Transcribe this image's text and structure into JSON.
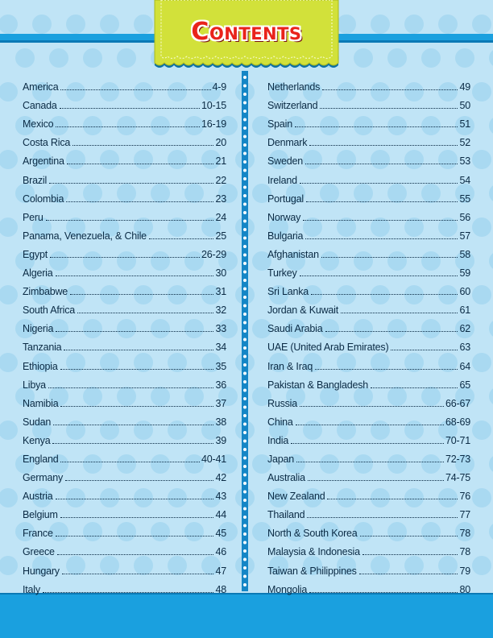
{
  "title": "Contents",
  "colors": {
    "band": "#1aa0df",
    "banner": "#d2e13a",
    "title": "#e9231b",
    "background": "#c0e4f6",
    "dots": "#a9d9f1"
  },
  "left_column": [
    {
      "name": "America",
      "page": "4-9"
    },
    {
      "name": "Canada",
      "page": "10-15"
    },
    {
      "name": "Mexico",
      "page": "16-19"
    },
    {
      "name": "Costa Rica",
      "page": "20"
    },
    {
      "name": "Argentina",
      "page": "21"
    },
    {
      "name": "Brazil",
      "page": "22"
    },
    {
      "name": "Colombia",
      "page": "23"
    },
    {
      "name": "Peru",
      "page": "24"
    },
    {
      "name": "Panama, Venezuela, & Chile",
      "page": "25"
    },
    {
      "name": "Egypt",
      "page": "26-29"
    },
    {
      "name": "Algeria",
      "page": "30"
    },
    {
      "name": "Zimbabwe",
      "page": "31"
    },
    {
      "name": "South Africa",
      "page": "32"
    },
    {
      "name": "Nigeria",
      "page": "33"
    },
    {
      "name": "Tanzania",
      "page": "34"
    },
    {
      "name": "Ethiopia",
      "page": "35"
    },
    {
      "name": "Libya",
      "page": "36"
    },
    {
      "name": "Namibia",
      "page": "37"
    },
    {
      "name": "Sudan",
      "page": "38"
    },
    {
      "name": "Kenya",
      "page": "39"
    },
    {
      "name": "England",
      "page": "40-41"
    },
    {
      "name": "Germany",
      "page": "42"
    },
    {
      "name": "Austria",
      "page": "43"
    },
    {
      "name": "Belgium",
      "page": "44"
    },
    {
      "name": "France",
      "page": "45"
    },
    {
      "name": "Greece",
      "page": "46"
    },
    {
      "name": "Hungary",
      "page": "47"
    },
    {
      "name": "Italy",
      "page": "48"
    }
  ],
  "right_column": [
    {
      "name": "Netherlands",
      "page": "49"
    },
    {
      "name": "Switzerland",
      "page": "50"
    },
    {
      "name": "Spain",
      "page": "51"
    },
    {
      "name": "Denmark",
      "page": "52"
    },
    {
      "name": "Sweden",
      "page": "53"
    },
    {
      "name": "Ireland",
      "page": "54"
    },
    {
      "name": "Portugal",
      "page": "55"
    },
    {
      "name": "Norway",
      "page": "56"
    },
    {
      "name": "Bulgaria",
      "page": "57"
    },
    {
      "name": "Afghanistan",
      "page": "58"
    },
    {
      "name": "Turkey",
      "page": "59"
    },
    {
      "name": "Sri Lanka",
      "page": "60"
    },
    {
      "name": "Jordan & Kuwait",
      "page": "61"
    },
    {
      "name": "Saudi Arabia",
      "page": "62"
    },
    {
      "name": "UAE (United Arab Emirates)",
      "page": "63"
    },
    {
      "name": "Iran & Iraq",
      "page": "64"
    },
    {
      "name": "Pakistan & Bangladesh",
      "page": "65"
    },
    {
      "name": "Russia",
      "page": "66-67"
    },
    {
      "name": "China",
      "page": "68-69"
    },
    {
      "name": "India",
      "page": "70-71"
    },
    {
      "name": "Japan",
      "page": "72-73"
    },
    {
      "name": "Australia",
      "page": "74-75"
    },
    {
      "name": "New Zealand",
      "page": "76"
    },
    {
      "name": "Thailand",
      "page": "77"
    },
    {
      "name": "North & South Korea",
      "page": "78"
    },
    {
      "name": "Malaysia & Indonesia",
      "page": "78"
    },
    {
      "name": "Taiwan & Philippines",
      "page": "79"
    },
    {
      "name": "Mongolia",
      "page": "80"
    }
  ]
}
